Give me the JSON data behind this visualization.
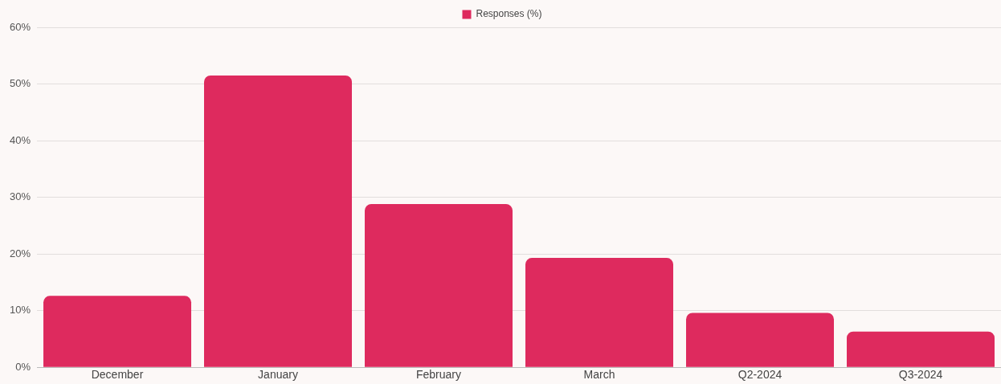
{
  "chart_data": {
    "type": "bar",
    "categories": [
      "December",
      "January",
      "February",
      "March",
      "Q2-2024",
      "Q3-2024"
    ],
    "series": [
      {
        "name": "Responses (%)",
        "color": "#de2a5e",
        "values": [
          12.6,
          51.5,
          28.8,
          19.3,
          9.6,
          6.3
        ]
      }
    ],
    "ylim": [
      0,
      60
    ],
    "yticks": [
      {
        "value": 0,
        "label": "0%"
      },
      {
        "value": 10,
        "label": "10%"
      },
      {
        "value": 20,
        "label": "20%"
      },
      {
        "value": 30,
        "label": "30%"
      },
      {
        "value": 40,
        "label": "40%"
      },
      {
        "value": 50,
        "label": "50%"
      },
      {
        "value": 60,
        "label": "60%"
      }
    ],
    "grid": "y",
    "legend": "top"
  }
}
